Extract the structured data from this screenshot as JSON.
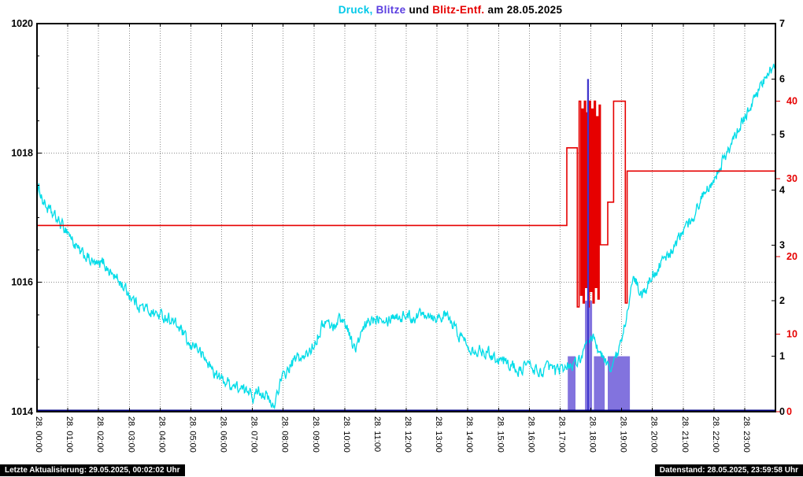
{
  "title": {
    "parts": [
      {
        "text": "Druck,",
        "color": "#00c8e8"
      },
      {
        "text": " ",
        "color": "#000000"
      },
      {
        "text": "Blitze",
        "color": "#5b3fe0"
      },
      {
        "text": " und ",
        "color": "#000000"
      },
      {
        "text": "Blitz-Entf.",
        "color": "#e60000"
      },
      {
        "text": " am 28.05.2025",
        "color": "#000000"
      }
    ]
  },
  "footer": {
    "last_update": "Letzte Aktualisierung: 29.05.2025, 00:02:02 Uhr",
    "data_state": "Datenstand: 28.05.2025, 23:59:58 Uhr"
  },
  "colors": {
    "background": "#ffffff",
    "border": "#000000",
    "grid": "#8c8c8c",
    "baseline": "#000080",
    "footer_bg": "#000000",
    "footer_text": "#ffffff"
  },
  "chart_data": {
    "type": "line",
    "title": "Druck, Blitze und Blitz-Entf. am 28.05.2025",
    "x_axis": {
      "range_hours": [
        0,
        24
      ],
      "tick_labels": [
        "28. 00:00",
        "28. 01:00",
        "28. 02:00",
        "28. 03:00",
        "28. 04:00",
        "28. 05:00",
        "28. 06:00",
        "28. 07:00",
        "28. 08:00",
        "28. 09:00",
        "28. 10:00",
        "28. 11:00",
        "28. 12:00",
        "28. 13:00",
        "28. 14:00",
        "28. 15:00",
        "28. 16:00",
        "28. 17:00",
        "28. 18:00",
        "28. 19:00",
        "28. 20:00",
        "28. 21:00",
        "28. 22:00",
        "28. 23:00"
      ]
    },
    "y_left": {
      "series": "Druck",
      "range": [
        1014,
        1020
      ],
      "tick_labels": [
        1014,
        1016,
        1018,
        1020
      ],
      "dotted_gridlines": [
        1016,
        1018
      ]
    },
    "y_right_inner": {
      "series": "Blitze",
      "range": [
        0,
        7
      ],
      "tick_labels": [
        0,
        1,
        2,
        3,
        4,
        5,
        6,
        7
      ]
    },
    "y_right_outer": {
      "series": "Blitz-Entf.",
      "range": [
        0,
        50
      ],
      "tick_labels": [
        0,
        10,
        20,
        30,
        40
      ],
      "color": "#e60000"
    },
    "legend_position": "none",
    "grid_on": true,
    "series": [
      {
        "name": "Druck",
        "axis": "y_left",
        "type": "line",
        "color": "#00dce8",
        "points": [
          [
            0,
            1017.35
          ],
          [
            0.08,
            1017.45
          ],
          [
            0.2,
            1017.25
          ],
          [
            0.4,
            1017.1
          ],
          [
            0.6,
            1017.0
          ],
          [
            0.8,
            1016.88
          ],
          [
            1.0,
            1016.8
          ],
          [
            1.2,
            1016.6
          ],
          [
            1.4,
            1016.45
          ],
          [
            1.6,
            1016.4
          ],
          [
            1.8,
            1016.3
          ],
          [
            2.0,
            1016.25
          ],
          [
            2.15,
            1016.32
          ],
          [
            2.3,
            1016.2
          ],
          [
            2.5,
            1016.1
          ],
          [
            2.7,
            1016.0
          ],
          [
            2.9,
            1015.88
          ],
          [
            3.1,
            1015.75
          ],
          [
            3.3,
            1015.65
          ],
          [
            3.5,
            1015.6
          ],
          [
            3.7,
            1015.55
          ],
          [
            3.9,
            1015.5
          ],
          [
            4.1,
            1015.47
          ],
          [
            4.3,
            1015.45
          ],
          [
            4.5,
            1015.35
          ],
          [
            4.7,
            1015.25
          ],
          [
            4.9,
            1015.05
          ],
          [
            5.0,
            1014.95
          ],
          [
            5.1,
            1015.08
          ],
          [
            5.25,
            1014.95
          ],
          [
            5.4,
            1014.85
          ],
          [
            5.55,
            1014.75
          ],
          [
            5.7,
            1014.65
          ],
          [
            5.85,
            1014.55
          ],
          [
            6.0,
            1014.5
          ],
          [
            6.2,
            1014.45
          ],
          [
            6.4,
            1014.4
          ],
          [
            6.6,
            1014.35
          ],
          [
            6.8,
            1014.3
          ],
          [
            6.95,
            1014.4
          ],
          [
            7.05,
            1014.15
          ],
          [
            7.15,
            1014.35
          ],
          [
            7.3,
            1014.3
          ],
          [
            7.45,
            1014.25
          ],
          [
            7.6,
            1014.1
          ],
          [
            7.7,
            1014.06
          ],
          [
            7.8,
            1014.3
          ],
          [
            7.9,
            1014.45
          ],
          [
            8.1,
            1014.6
          ],
          [
            8.3,
            1014.75
          ],
          [
            8.5,
            1014.85
          ],
          [
            8.65,
            1014.8
          ],
          [
            8.8,
            1014.9
          ],
          [
            9.0,
            1015.05
          ],
          [
            9.2,
            1015.25
          ],
          [
            9.35,
            1015.4
          ],
          [
            9.5,
            1015.35
          ],
          [
            9.65,
            1015.3
          ],
          [
            9.8,
            1015.45
          ],
          [
            9.95,
            1015.4
          ],
          [
            10.1,
            1015.3
          ],
          [
            10.25,
            1015.05
          ],
          [
            10.35,
            1014.95
          ],
          [
            10.5,
            1015.15
          ],
          [
            10.65,
            1015.3
          ],
          [
            10.8,
            1015.4
          ],
          [
            11.0,
            1015.45
          ],
          [
            11.2,
            1015.5
          ],
          [
            11.4,
            1015.42
          ],
          [
            11.6,
            1015.5
          ],
          [
            11.8,
            1015.46
          ],
          [
            12.0,
            1015.5
          ],
          [
            12.2,
            1015.45
          ],
          [
            12.4,
            1015.5
          ],
          [
            12.6,
            1015.55
          ],
          [
            12.8,
            1015.5
          ],
          [
            13.0,
            1015.46
          ],
          [
            13.2,
            1015.5
          ],
          [
            13.35,
            1015.45
          ],
          [
            13.5,
            1015.35
          ],
          [
            13.7,
            1015.2
          ],
          [
            13.9,
            1015.1
          ],
          [
            14.1,
            1015.0
          ],
          [
            14.3,
            1014.95
          ],
          [
            14.5,
            1014.95
          ],
          [
            14.7,
            1014.9
          ],
          [
            14.9,
            1014.85
          ],
          [
            15.1,
            1014.8
          ],
          [
            15.3,
            1014.75
          ],
          [
            15.5,
            1014.7
          ],
          [
            15.7,
            1014.6
          ],
          [
            15.85,
            1014.75
          ],
          [
            16.0,
            1014.7
          ],
          [
            16.2,
            1014.65
          ],
          [
            16.35,
            1014.6
          ],
          [
            16.5,
            1014.65
          ],
          [
            16.7,
            1014.7
          ],
          [
            16.85,
            1014.6
          ],
          [
            17.0,
            1014.65
          ],
          [
            17.15,
            1014.7
          ],
          [
            17.3,
            1014.75
          ],
          [
            17.45,
            1014.7
          ],
          [
            17.6,
            1014.8
          ],
          [
            17.75,
            1014.9
          ],
          [
            17.9,
            1015.0
          ],
          [
            18.0,
            1015.1
          ],
          [
            18.1,
            1015.15
          ],
          [
            18.2,
            1015.0
          ],
          [
            18.35,
            1014.85
          ],
          [
            18.5,
            1014.75
          ],
          [
            18.65,
            1014.7
          ],
          [
            18.8,
            1014.8
          ],
          [
            18.95,
            1015.0
          ],
          [
            19.05,
            1015.2
          ],
          [
            19.15,
            1015.5
          ],
          [
            19.25,
            1015.75
          ],
          [
            19.35,
            1015.95
          ],
          [
            19.45,
            1016.05
          ],
          [
            19.55,
            1015.9
          ],
          [
            19.65,
            1015.78
          ],
          [
            19.75,
            1015.82
          ],
          [
            19.85,
            1015.95
          ],
          [
            19.95,
            1016.08
          ],
          [
            20.1,
            1016.18
          ],
          [
            20.3,
            1016.3
          ],
          [
            20.5,
            1016.4
          ],
          [
            20.7,
            1016.55
          ],
          [
            20.9,
            1016.7
          ],
          [
            21.1,
            1016.85
          ],
          [
            21.3,
            1017.0
          ],
          [
            21.5,
            1017.2
          ],
          [
            21.7,
            1017.4
          ],
          [
            21.9,
            1017.55
          ],
          [
            22.1,
            1017.7
          ],
          [
            22.3,
            1017.9
          ],
          [
            22.5,
            1018.05
          ],
          [
            22.7,
            1018.25
          ],
          [
            22.9,
            1018.45
          ],
          [
            23.1,
            1018.65
          ],
          [
            23.3,
            1018.85
          ],
          [
            23.5,
            1019.0
          ],
          [
            23.7,
            1019.15
          ],
          [
            23.85,
            1019.28
          ],
          [
            24.0,
            1019.3
          ]
        ]
      },
      {
        "name": "Blitze",
        "axis": "y_right_inner",
        "type": "bar",
        "color": "#8273de",
        "spike_color": "#4036cd",
        "bars": [
          [
            17.25,
            17.5,
            1
          ],
          [
            17.81,
            17.88,
            2
          ],
          [
            17.88,
            17.94,
            6
          ],
          [
            17.94,
            18.04,
            2
          ],
          [
            18.1,
            18.45,
            1
          ],
          [
            18.55,
            19.27,
            1
          ]
        ]
      },
      {
        "name": "Blitz-Entf.",
        "axis": "y_right_outer",
        "type": "step",
        "color": "#e60000",
        "steps": [
          [
            0,
            24
          ],
          [
            17.22,
            34
          ],
          [
            17.56,
            13.5
          ],
          [
            17.62,
            40
          ],
          [
            17.67,
            15
          ],
          [
            17.71,
            39
          ],
          [
            17.75,
            14
          ],
          [
            17.79,
            40
          ],
          [
            17.83,
            16
          ],
          [
            17.87,
            38.5
          ],
          [
            17.91,
            13.5
          ],
          [
            17.95,
            40
          ],
          [
            17.99,
            15.5
          ],
          [
            18.03,
            39
          ],
          [
            18.07,
            14
          ],
          [
            18.11,
            40
          ],
          [
            18.15,
            16
          ],
          [
            18.19,
            38
          ],
          [
            18.23,
            14.5
          ],
          [
            18.27,
            39.5
          ],
          [
            18.31,
            21.5
          ],
          [
            18.55,
            27
          ],
          [
            18.74,
            40
          ],
          [
            19.12,
            14
          ],
          [
            19.18,
            31
          ]
        ]
      }
    ]
  }
}
